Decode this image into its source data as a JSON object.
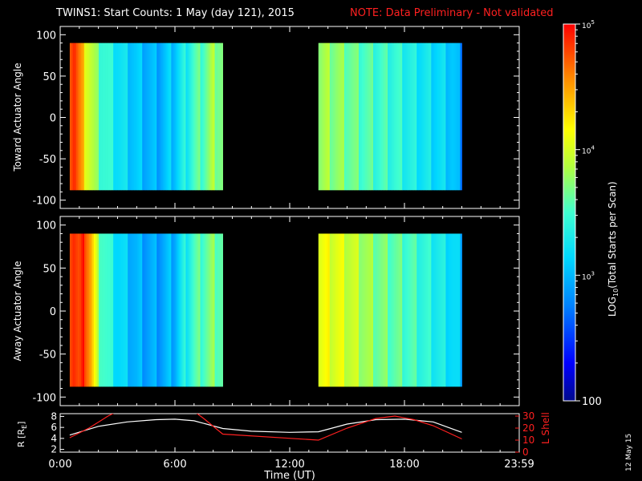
{
  "header": {
    "title": "TWINS1: Start Counts:  1 May (day 121), 2015",
    "note": "NOTE: Data Preliminary - Not validated"
  },
  "side_date": "12 May 15",
  "colors": {
    "background": "#000000",
    "axis": "#ffffff",
    "note": "#ff2020",
    "lshell_line": "#ff2020",
    "r_line": "#ffffff"
  },
  "chart_data": [
    {
      "type": "heatmap",
      "panel": "toward",
      "ylabel": "Toward Actuator Angle",
      "xlim": [
        0,
        24
      ],
      "ylim": [
        -110,
        110
      ],
      "yticks": [
        "100",
        "50",
        "0",
        "-50",
        "-100"
      ],
      "blocks": [
        {
          "x": [
            0.5,
            8.5
          ],
          "y": [
            -88,
            90
          ]
        },
        {
          "x": [
            13.5,
            21.0
          ],
          "y": [
            -88,
            90
          ]
        }
      ],
      "profile_log10": {
        "times": [
          0.5,
          0.6,
          0.75,
          0.9,
          1.3,
          2.0,
          3.0,
          4.0,
          5.0,
          6.0,
          6.5,
          7.0,
          7.5,
          8.0,
          8.5,
          13.5,
          14.5,
          15.5,
          16.5,
          17.5,
          18.5,
          19.5,
          20.5,
          21.0
        ],
        "values": [
          4.85,
          4.9,
          4.95,
          4.7,
          4.2,
          3.6,
          3.25,
          3.05,
          2.95,
          3.1,
          3.3,
          3.5,
          3.6,
          3.8,
          3.7,
          3.8,
          3.75,
          3.6,
          3.5,
          3.45,
          3.3,
          3.2,
          3.1,
          2.8
        ]
      }
    },
    {
      "type": "heatmap",
      "panel": "away",
      "ylabel": "Away Actuator Angle",
      "xlim": [
        0,
        24
      ],
      "ylim": [
        -110,
        110
      ],
      "yticks": [
        "100",
        "50",
        "0",
        "-50",
        "-100"
      ],
      "blocks": [
        {
          "x": [
            0.5,
            8.5
          ],
          "y": [
            -88,
            90
          ]
        },
        {
          "x": [
            13.5,
            21.0
          ],
          "y": [
            -88,
            90
          ]
        }
      ],
      "profile_log10": {
        "times": [
          0.5,
          0.7,
          1.0,
          1.3,
          1.6,
          2.0,
          3.0,
          4.0,
          5.0,
          6.0,
          6.5,
          7.0,
          7.5,
          8.0,
          8.5,
          13.5,
          14.5,
          15.5,
          16.5,
          17.5,
          18.5,
          19.5,
          20.5,
          21.0
        ],
        "values": [
          4.9,
          4.95,
          4.7,
          4.9,
          4.5,
          3.7,
          3.2,
          2.95,
          2.9,
          3.0,
          3.3,
          3.5,
          3.6,
          3.7,
          3.6,
          4.1,
          4.05,
          3.9,
          3.7,
          3.6,
          3.5,
          3.35,
          3.2,
          3.0
        ]
      }
    },
    {
      "type": "line",
      "panel": "orbit",
      "xlabel": "Time (UT)",
      "ylabel_left": "R [R",
      "ylabel_left_sub": "E",
      "ylabel_left_end": "]",
      "ylabel_right": "L Shell",
      "xlim": [
        0,
        24
      ],
      "xticks": [
        "0:00",
        "6:00",
        "12:00",
        "18:00",
        "23:59"
      ],
      "ylim_left": [
        1.5,
        8.5
      ],
      "yticks_left": [
        "8",
        "6",
        "4",
        "2"
      ],
      "ylim_right": [
        0,
        32
      ],
      "yticks_right": [
        "30",
        "20",
        "10",
        "0"
      ],
      "series": [
        {
          "name": "R",
          "axis": "left",
          "x": [
            0.5,
            2.0,
            3.5,
            5.0,
            6.0,
            7.0,
            8.5,
            10.0,
            12.0,
            13.5,
            15.0,
            16.5,
            18.0,
            19.5,
            21.0
          ],
          "y": [
            4.6,
            6.2,
            7.0,
            7.4,
            7.5,
            7.2,
            5.8,
            5.3,
            5.1,
            5.2,
            6.6,
            7.4,
            7.5,
            7.0,
            5.1
          ]
        },
        {
          "name": "L Shell",
          "axis": "right",
          "x": [
            0.5,
            1.5,
            2.5,
            3.0,
            7.0,
            7.5,
            8.5,
            13.5,
            15.0,
            16.5,
            17.5,
            18.5,
            19.5,
            21.0
          ],
          "y": [
            12,
            20,
            30,
            34,
            34,
            28,
            15,
            10,
            20,
            28,
            30,
            27,
            22,
            11
          ]
        }
      ]
    }
  ],
  "colorbar": {
    "label": "LOG",
    "label_sub": "10",
    "label_end": "(Total Starts per Scan)",
    "range_log10": [
      2,
      5
    ],
    "ticks": [
      {
        "value": 5,
        "base": "10",
        "exp": "5"
      },
      {
        "value": 4,
        "base": "10",
        "exp": "4"
      },
      {
        "value": 3,
        "base": "10",
        "exp": "3"
      },
      {
        "value": 2,
        "text": "100"
      }
    ]
  }
}
